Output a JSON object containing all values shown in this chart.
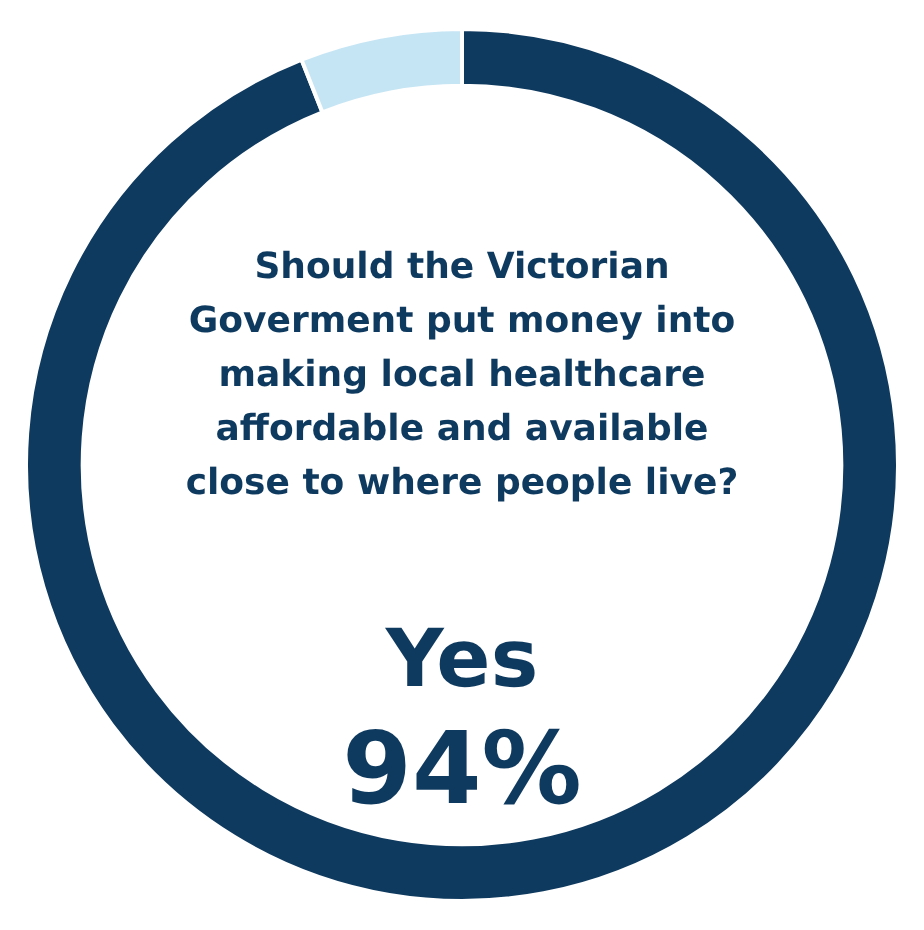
{
  "chart_data": {
    "type": "donut",
    "title": "Should the Victorian Goverment put money into making local healthcare affordable and available close to where people live?",
    "categories": [
      "Yes",
      null
    ],
    "values": [
      94,
      6
    ],
    "colors": [
      "#0f3a5f",
      "#c6e5f4"
    ],
    "value_labels": [
      "94%",
      null
    ],
    "legend": false
  }
}
